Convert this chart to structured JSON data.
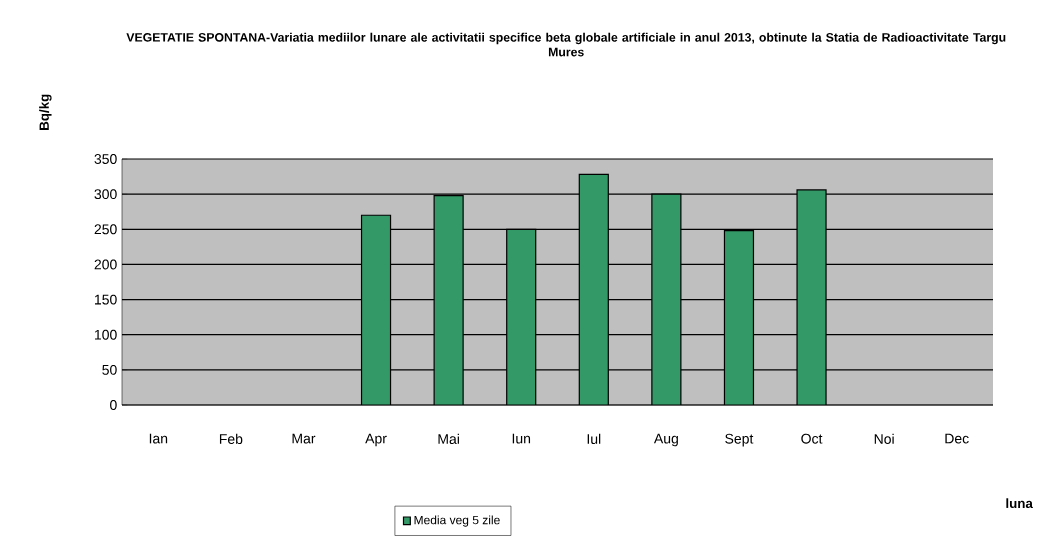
{
  "chart_data": {
    "type": "bar",
    "title": "VEGETATIE SPONTANA-Variatia mediilor lunare ale activitatii specifice beta globale artificiale in anul 2013, obtinute la Statia de Radioactivitate Targu Mures",
    "xlabel": "luna",
    "ylabel": "Bq/kg",
    "categories": [
      "Ian",
      "Feb",
      "Mar",
      "Apr",
      "Mai",
      "Iun",
      "Iul",
      "Aug",
      "Sept",
      "Oct",
      "Noi",
      "Dec"
    ],
    "series": [
      {
        "name": "Media veg 5 zile",
        "color": "#339966",
        "values": [
          null,
          null,
          null,
          270,
          298,
          250,
          328,
          300,
          248,
          306,
          null,
          null
        ]
      }
    ],
    "ylim": [
      0,
      350
    ],
    "yticks": [
      0,
      50,
      100,
      150,
      200,
      250,
      300,
      350
    ],
    "grid": "y",
    "legend": "bottom"
  }
}
